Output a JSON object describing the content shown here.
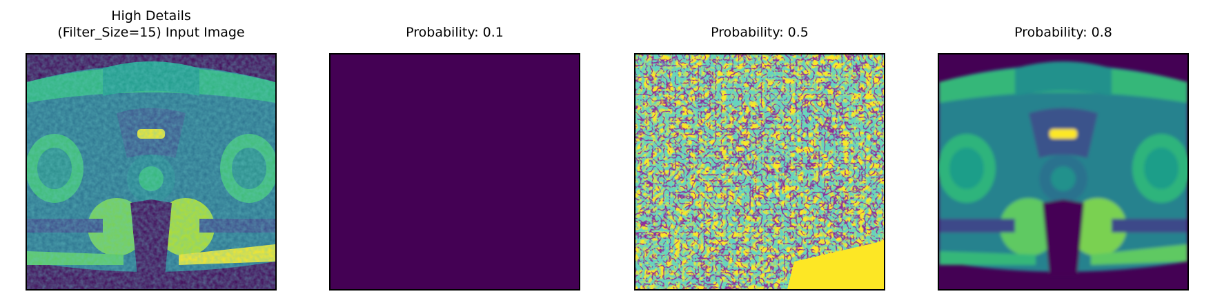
{
  "panels": [
    {
      "title_line1": "High Details",
      "title_line2": "(Filter_Size=15) Input Image",
      "image": "mri-pelvis-input"
    },
    {
      "title_line1": "",
      "title_line2": "Probability: 0.1",
      "image": "uniform-dark-purple"
    },
    {
      "title_line1": "",
      "title_line2": "Probability: 0.5",
      "image": "noisy-yellow-green-speckle"
    },
    {
      "title_line1": "",
      "title_line2": "Probability: 0.8",
      "image": "mri-pelvis-smoothed"
    }
  ],
  "colors": {
    "viridis_dark": "#440154",
    "viridis_blue": "#31688e",
    "viridis_teal": "#21918c",
    "viridis_green": "#35b779",
    "viridis_yellow": "#fde725"
  }
}
